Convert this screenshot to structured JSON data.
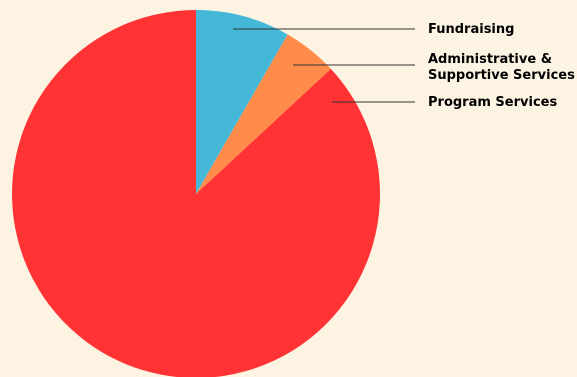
{
  "chart_data": {
    "type": "pie",
    "title": "",
    "start_angle": "12 o'clock",
    "direction": "clockwise",
    "legend_placement": "right",
    "slices": [
      {
        "label": "Fundraising",
        "label_lines": [
          "Fundraising"
        ],
        "value": 8.3,
        "color": "#45B8D8"
      },
      {
        "label": "Administrative & Supportive Services",
        "label_lines": [
          "Administrative &",
          "Supportive Services"
        ],
        "value": 4.8,
        "color": "#FF8C4B"
      },
      {
        "label": "Program Services",
        "label_lines": [
          "Program Services"
        ],
        "value": 86.9,
        "color": "#FF3333"
      }
    ]
  }
}
